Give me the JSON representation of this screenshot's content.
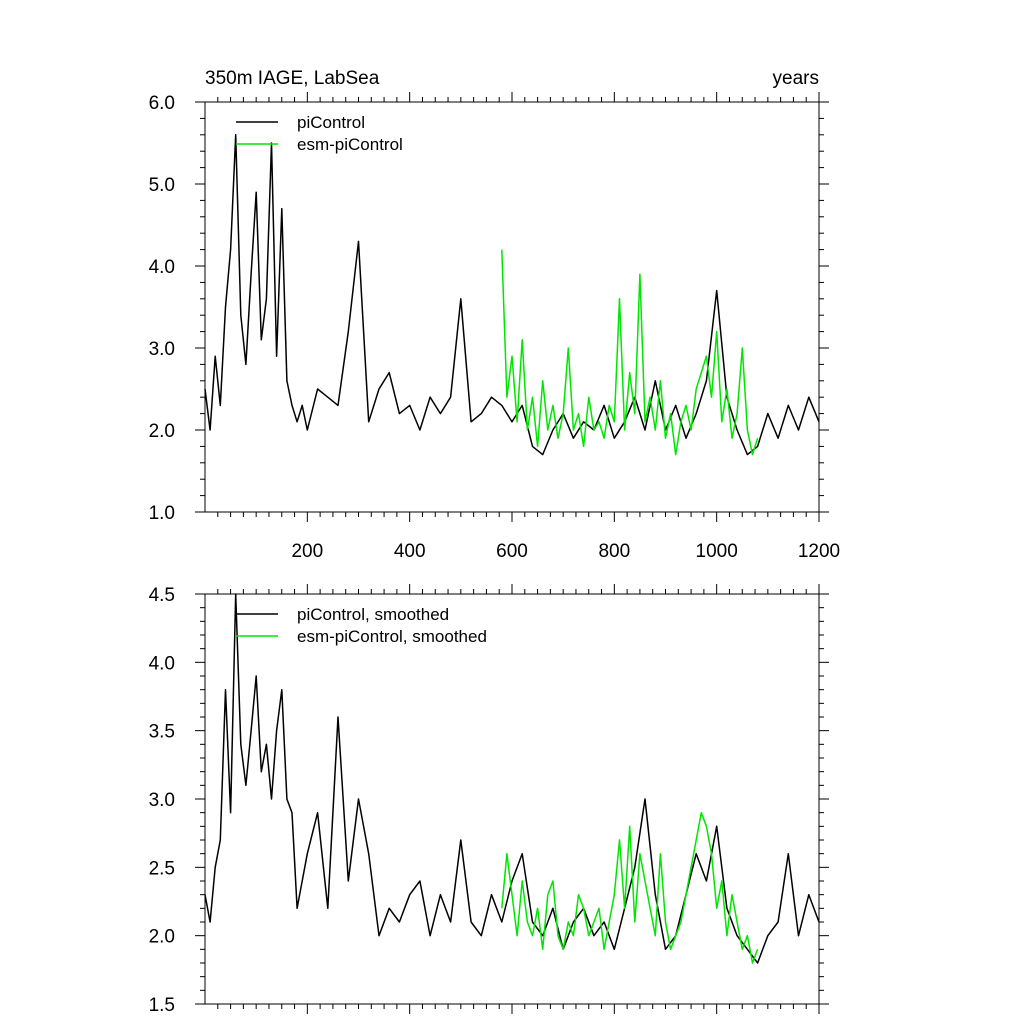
{
  "chart_data": [
    {
      "type": "line",
      "title": "350m IAGE, LabSea",
      "right_title": "years",
      "xlim": [
        0,
        1200
      ],
      "ylim": [
        1.0,
        6.0
      ],
      "xticks": [
        200,
        400,
        600,
        800,
        1000,
        1200
      ],
      "xtick_labels": [
        "200",
        "400",
        "600",
        "800",
        "1000",
        "1200"
      ],
      "yticks": [
        1.0,
        2.0,
        3.0,
        4.0,
        5.0,
        6.0
      ],
      "ytick_labels": [
        "1.0",
        "2.0",
        "3.0",
        "4.0",
        "5.0",
        "6.0"
      ],
      "grid": false,
      "legend_position": "top-left",
      "series": [
        {
          "name": "piControl",
          "color": "#000000",
          "x": [
            0,
            10,
            20,
            30,
            40,
            50,
            60,
            70,
            80,
            90,
            100,
            110,
            120,
            130,
            140,
            150,
            160,
            170,
            180,
            190,
            200,
            220,
            240,
            260,
            280,
            300,
            320,
            340,
            360,
            380,
            400,
            420,
            440,
            460,
            480,
            500,
            520,
            540,
            560,
            580,
            600,
            620,
            640,
            660,
            680,
            700,
            720,
            740,
            760,
            780,
            800,
            820,
            840,
            860,
            880,
            900,
            920,
            940,
            960,
            980,
            1000,
            1020,
            1040,
            1060,
            1080,
            1100,
            1120,
            1140,
            1160,
            1180,
            1200
          ],
          "values": [
            2.5,
            2.0,
            2.9,
            2.3,
            3.5,
            4.2,
            5.6,
            3.4,
            2.8,
            3.9,
            4.9,
            3.1,
            3.6,
            5.5,
            2.9,
            4.7,
            2.6,
            2.3,
            2.1,
            2.3,
            2.0,
            2.5,
            2.4,
            2.3,
            3.2,
            4.3,
            2.1,
            2.5,
            2.7,
            2.2,
            2.3,
            2.0,
            2.4,
            2.2,
            2.4,
            3.6,
            2.1,
            2.2,
            2.4,
            2.3,
            2.1,
            2.3,
            1.8,
            1.7,
            2.0,
            2.2,
            1.9,
            2.1,
            2.0,
            2.3,
            1.9,
            2.1,
            2.4,
            2.0,
            2.6,
            2.0,
            2.3,
            1.9,
            2.2,
            2.6,
            3.7,
            2.4,
            2.0,
            1.7,
            1.8,
            2.2,
            1.9,
            2.3,
            2.0,
            2.4,
            2.1
          ]
        },
        {
          "name": "esm-piControl",
          "color": "#00e600",
          "x": [
            580,
            590,
            600,
            610,
            620,
            630,
            640,
            650,
            660,
            670,
            680,
            690,
            700,
            710,
            720,
            730,
            740,
            750,
            760,
            770,
            780,
            790,
            800,
            810,
            820,
            830,
            840,
            850,
            860,
            870,
            880,
            890,
            900,
            910,
            920,
            930,
            940,
            950,
            960,
            970,
            980,
            990,
            1000,
            1010,
            1020,
            1030,
            1040,
            1050,
            1060,
            1070,
            1080
          ],
          "values": [
            4.2,
            2.4,
            2.9,
            2.1,
            3.1,
            2.0,
            2.4,
            1.8,
            2.6,
            2.0,
            2.3,
            1.9,
            2.2,
            3.0,
            2.0,
            2.2,
            1.8,
            2.4,
            2.0,
            2.1,
            1.9,
            2.3,
            2.1,
            3.6,
            2.0,
            2.7,
            2.2,
            3.9,
            2.1,
            2.4,
            2.0,
            2.6,
            1.9,
            2.2,
            1.7,
            2.1,
            2.3,
            2.0,
            2.5,
            2.7,
            2.9,
            2.4,
            3.2,
            2.1,
            2.5,
            1.9,
            2.2,
            3.0,
            2.0,
            1.7,
            1.9
          ]
        }
      ]
    },
    {
      "type": "line",
      "xlim": [
        0,
        1200
      ],
      "ylim": [
        1.5,
        4.5
      ],
      "xticks": [
        200,
        400,
        600,
        800,
        1000,
        1200
      ],
      "yticks": [
        1.5,
        2.0,
        2.5,
        3.0,
        3.5,
        4.0,
        4.5
      ],
      "ytick_labels": [
        "1.5",
        "2.0",
        "2.5",
        "3.0",
        "3.5",
        "4.0",
        "4.5"
      ],
      "grid": false,
      "legend_position": "top-left",
      "series": [
        {
          "name": "piControl, smoothed",
          "color": "#000000",
          "x": [
            0,
            10,
            20,
            30,
            40,
            50,
            60,
            70,
            80,
            90,
            100,
            110,
            120,
            130,
            140,
            150,
            160,
            170,
            180,
            190,
            200,
            220,
            240,
            260,
            280,
            300,
            320,
            340,
            360,
            380,
            400,
            420,
            440,
            460,
            480,
            500,
            520,
            540,
            560,
            580,
            600,
            620,
            640,
            660,
            680,
            700,
            720,
            740,
            760,
            780,
            800,
            820,
            840,
            860,
            880,
            900,
            920,
            940,
            960,
            980,
            1000,
            1020,
            1040,
            1060,
            1080,
            1100,
            1120,
            1140,
            1160,
            1180,
            1200
          ],
          "values": [
            2.3,
            2.1,
            2.5,
            2.7,
            3.8,
            2.9,
            4.5,
            3.4,
            3.1,
            3.5,
            3.9,
            3.2,
            3.4,
            3.0,
            3.5,
            3.8,
            3.0,
            2.9,
            2.2,
            2.4,
            2.6,
            2.9,
            2.2,
            3.6,
            2.4,
            3.0,
            2.6,
            2.0,
            2.2,
            2.1,
            2.3,
            2.4,
            2.0,
            2.3,
            2.1,
            2.7,
            2.1,
            2.0,
            2.3,
            2.1,
            2.4,
            2.6,
            2.1,
            2.0,
            2.2,
            1.9,
            2.1,
            2.2,
            2.0,
            2.1,
            1.9,
            2.2,
            2.5,
            3.0,
            2.3,
            1.9,
            2.0,
            2.3,
            2.6,
            2.4,
            2.8,
            2.2,
            2.0,
            1.9,
            1.8,
            2.0,
            2.1,
            2.6,
            2.0,
            2.3,
            2.1
          ]
        },
        {
          "name": "esm-piControl, smoothed",
          "color": "#00e600",
          "x": [
            580,
            590,
            600,
            610,
            620,
            630,
            640,
            650,
            660,
            670,
            680,
            690,
            700,
            710,
            720,
            730,
            740,
            750,
            760,
            770,
            780,
            790,
            800,
            810,
            820,
            830,
            840,
            850,
            860,
            870,
            880,
            890,
            900,
            910,
            920,
            930,
            940,
            950,
            960,
            970,
            980,
            990,
            1000,
            1010,
            1020,
            1030,
            1040,
            1050,
            1060,
            1070,
            1080
          ],
          "values": [
            2.2,
            2.6,
            2.3,
            2.0,
            2.4,
            2.1,
            2.0,
            2.2,
            1.9,
            2.3,
            2.4,
            2.0,
            1.9,
            2.1,
            2.0,
            2.3,
            2.2,
            2.0,
            2.1,
            2.2,
            1.9,
            2.1,
            2.3,
            2.7,
            2.2,
            2.8,
            2.1,
            2.6,
            2.4,
            2.2,
            2.0,
            2.6,
            2.1,
            1.9,
            2.0,
            2.1,
            2.3,
            2.5,
            2.7,
            2.9,
            2.8,
            2.6,
            2.2,
            2.4,
            2.0,
            2.3,
            2.1,
            1.9,
            2.0,
            1.8,
            1.9
          ]
        }
      ]
    }
  ]
}
